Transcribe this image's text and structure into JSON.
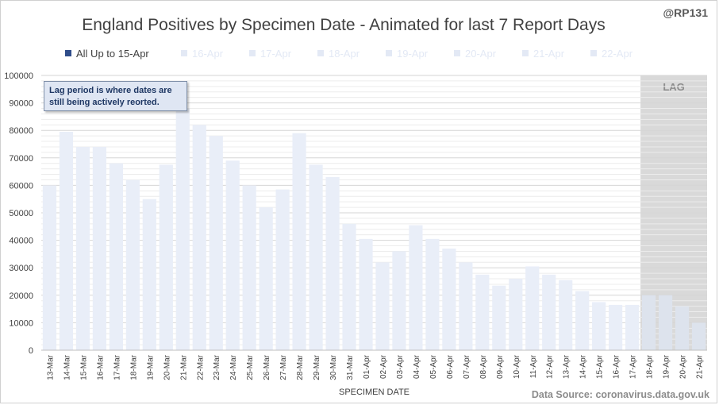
{
  "header": {
    "title": "England Positives by Specimen Date - Animated for last 7 Report Days",
    "handle": "@RP131"
  },
  "legend": {
    "items": [
      {
        "label": "All Up to 15-Apr",
        "color": "#2f4d8a",
        "text_color": "#404040"
      },
      {
        "label": "16-Apr",
        "color": "#e3e9f5",
        "text_color": "#e3e9f5"
      },
      {
        "label": "17-Apr",
        "color": "#e3e9f5",
        "text_color": "#e3e9f5"
      },
      {
        "label": "18-Apr",
        "color": "#e3e9f5",
        "text_color": "#e3e9f5"
      },
      {
        "label": "19-Apr",
        "color": "#e3e9f5",
        "text_color": "#e3e9f5"
      },
      {
        "label": "20-Apr",
        "color": "#e3e9f5",
        "text_color": "#e3e9f5"
      },
      {
        "label": "21-Apr",
        "color": "#e3e9f5",
        "text_color": "#e3e9f5"
      },
      {
        "label": "22-Apr",
        "color": "#e3e9f5",
        "text_color": "#e3e9f5"
      }
    ]
  },
  "annotation": {
    "line1": "Lag period is where dates are",
    "line2": "still being actively reorted."
  },
  "footer": {
    "source": "Data Source: coronavirus.data.gov.uk"
  },
  "colors": {
    "bar": "#e9eef8",
    "lag_bar": "#dde3ed",
    "lag_shade": "#d9d9d9",
    "grid": "#e2e2e2",
    "axis_text": "#404040"
  },
  "chart_data": {
    "type": "bar",
    "xlabel": "SPECIMEN DATE",
    "ylabel": "",
    "ylim": [
      0,
      100000
    ],
    "yticks": [
      0,
      10000,
      20000,
      30000,
      40000,
      50000,
      60000,
      70000,
      80000,
      90000,
      100000
    ],
    "grid": true,
    "lag_label": "LAG",
    "lag_start": "18-Apr",
    "categories": [
      "13-Mar",
      "14-Mar",
      "15-Mar",
      "16-Mar",
      "17-Mar",
      "18-Mar",
      "19-Mar",
      "20-Mar",
      "21-Mar",
      "22-Mar",
      "23-Mar",
      "24-Mar",
      "25-Mar",
      "26-Mar",
      "27-Mar",
      "28-Mar",
      "29-Mar",
      "30-Mar",
      "31-Mar",
      "01-Apr",
      "02-Apr",
      "03-Apr",
      "04-Apr",
      "05-Apr",
      "06-Apr",
      "07-Apr",
      "08-Apr",
      "09-Apr",
      "10-Apr",
      "11-Apr",
      "12-Apr",
      "13-Apr",
      "14-Apr",
      "15-Apr",
      "16-Apr",
      "17-Apr",
      "18-Apr",
      "19-Apr",
      "20-Apr",
      "21-Apr"
    ],
    "series": [
      {
        "values": [
          60000,
          79500,
          74000,
          74000,
          68000,
          62000,
          55000,
          67500,
          88000,
          82000,
          78000,
          69000,
          60000,
          52000,
          58500,
          79000,
          67500,
          63000,
          46000,
          40500,
          32000,
          36000,
          45500,
          40500,
          37000,
          32000,
          27500,
          23500,
          26000,
          30500,
          27500,
          25500,
          21500,
          17500,
          16500,
          16500,
          20000,
          20000,
          16000,
          10000
        ]
      }
    ]
  }
}
